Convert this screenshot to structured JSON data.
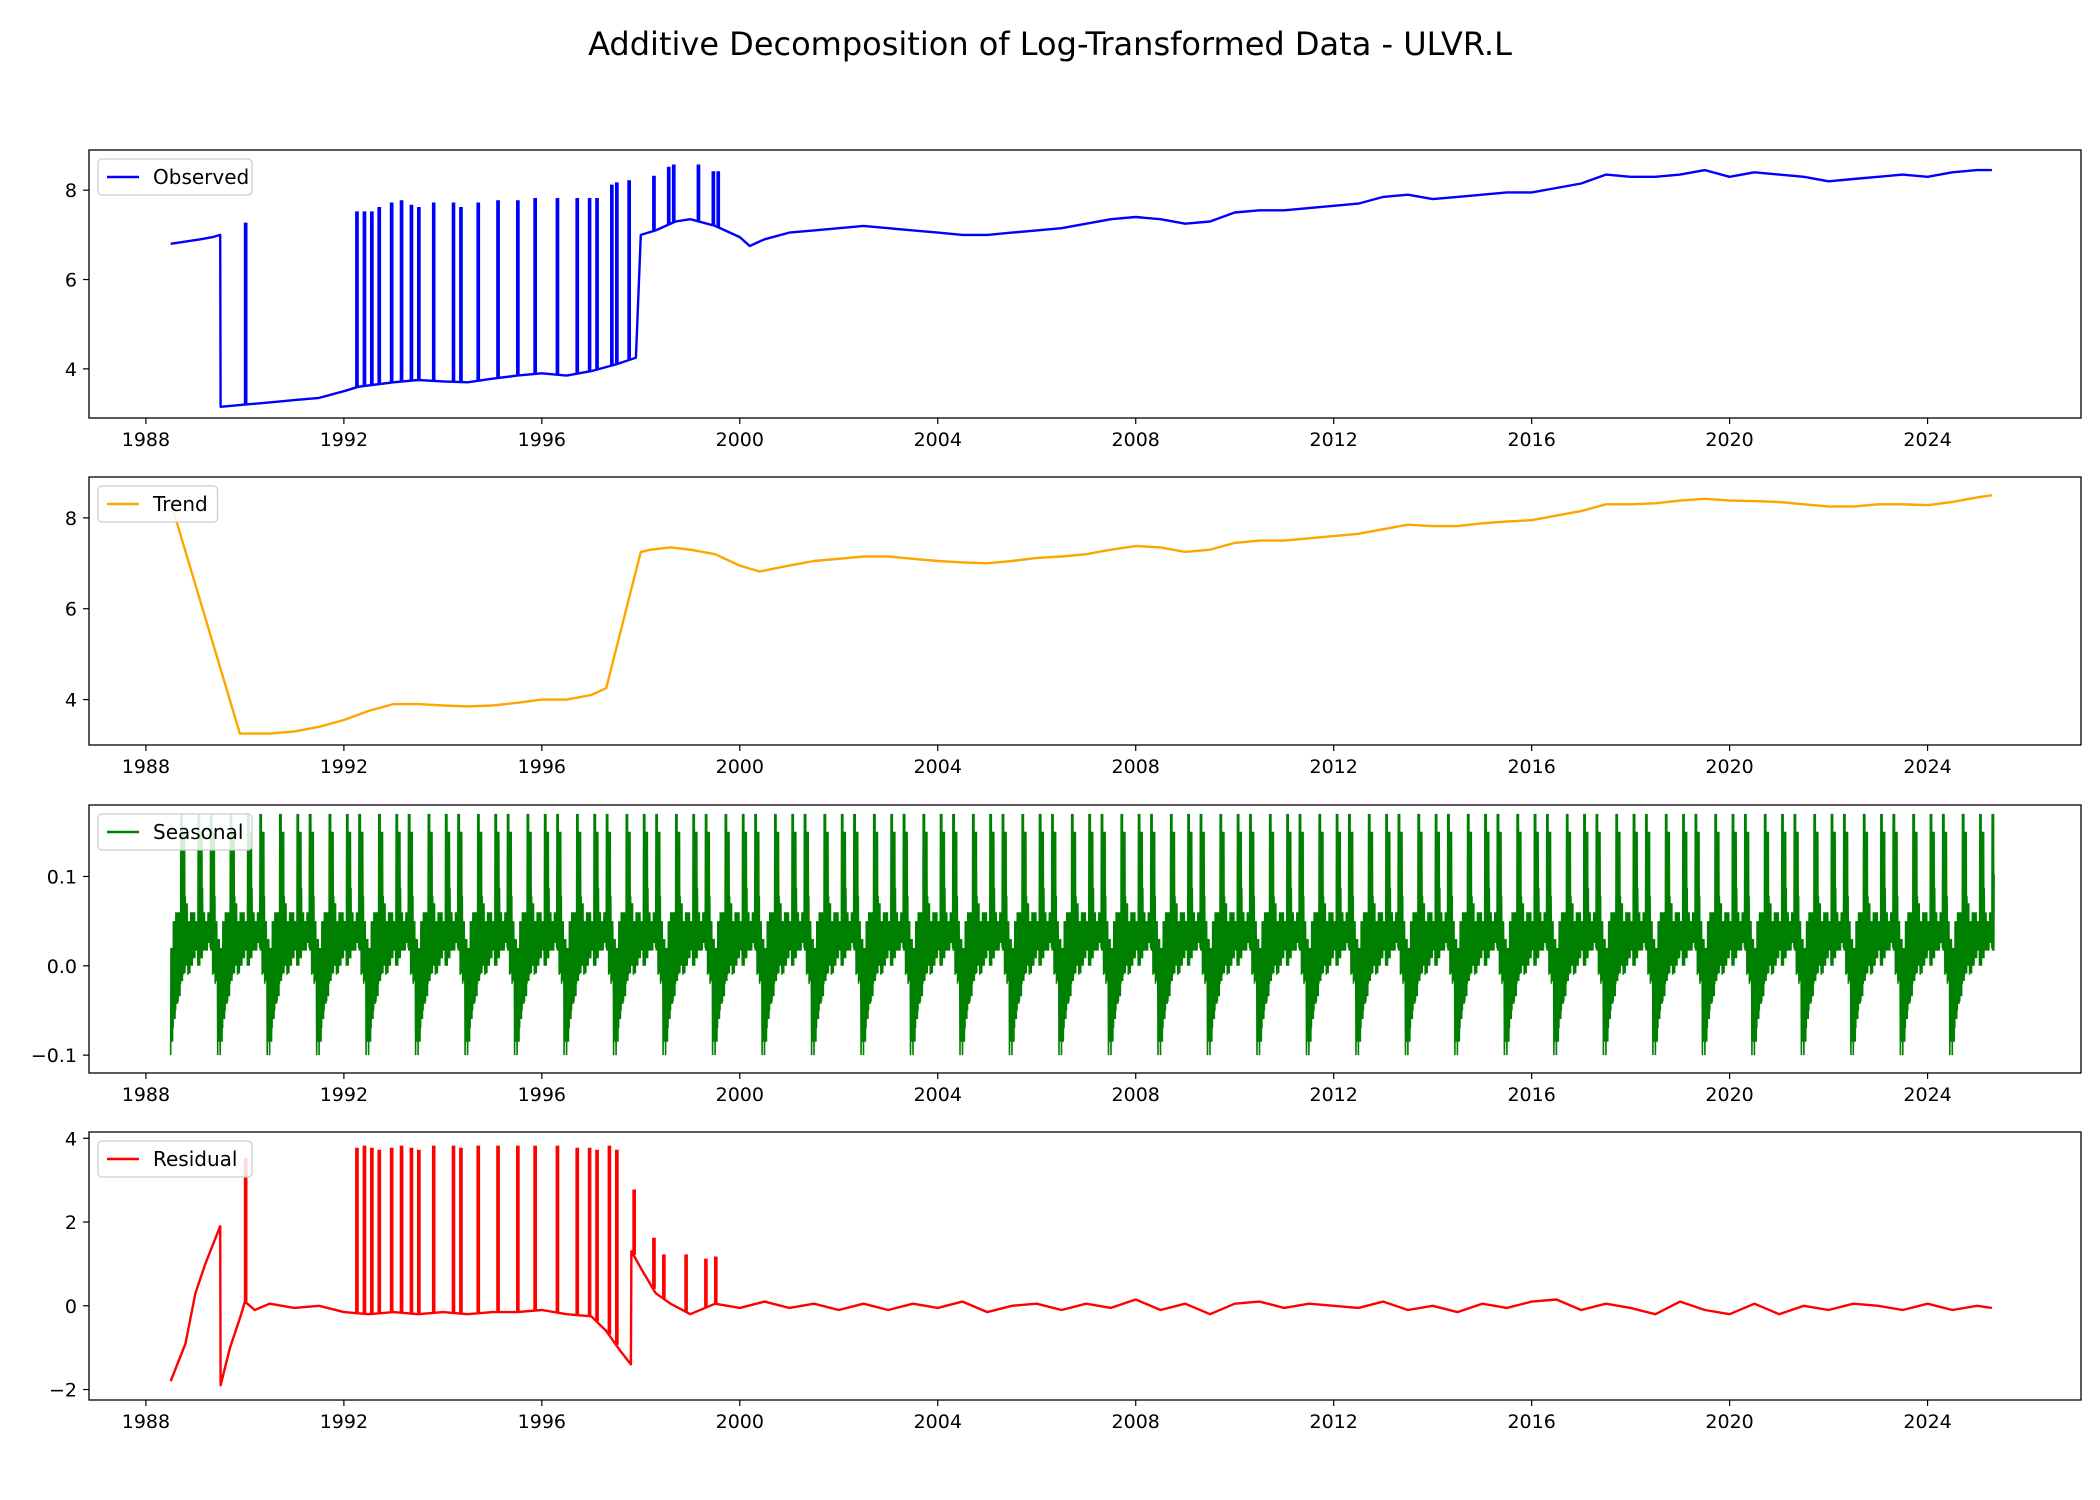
{
  "title": "Additive Decomposition of Log-Transformed Data - ULVR.L",
  "chart_data": [
    {
      "type": "line",
      "title": "",
      "legend": "top-left",
      "series": [
        {
          "name": "Observed",
          "color": "#0000ff"
        }
      ],
      "xlim": [
        1986.85,
        2027.1
      ],
      "ylim": [
        2.9,
        8.9
      ],
      "xticks": [
        1988,
        1992,
        1996,
        2000,
        2004,
        2008,
        2012,
        2016,
        2020,
        2024
      ],
      "yticks": [
        4,
        6,
        8
      ],
      "xticklabels": [
        "1988",
        "1992",
        "1996",
        "2000",
        "2004",
        "2008",
        "2012",
        "2016",
        "2020",
        "2024"
      ],
      "yticklabels": [
        "4",
        "6",
        "8"
      ],
      "x": [
        1988.5,
        1988.8,
        1989.1,
        1989.35,
        1989.5,
        1989.51,
        1990.0,
        1990.5,
        1991.0,
        1991.5,
        1992.0,
        1992.3,
        1993.0,
        1993.5,
        1994.0,
        1994.5,
        1995.0,
        1995.5,
        1996.0,
        1996.5,
        1997.0,
        1997.5,
        1997.9,
        1998.0,
        1998.3,
        1998.7,
        1999.0,
        1999.5,
        2000.0,
        2000.2,
        2000.5,
        2001.0,
        2001.5,
        2002.0,
        2002.5,
        2003.0,
        2003.5,
        2004.0,
        2004.5,
        2005.0,
        2005.5,
        2006.0,
        2006.5,
        2007.0,
        2007.5,
        2008.0,
        2008.5,
        2009.0,
        2009.5,
        2010.0,
        2010.5,
        2011.0,
        2011.5,
        2012.0,
        2012.5,
        2013.0,
        2013.5,
        2014.0,
        2014.5,
        2015.0,
        2015.5,
        2016.0,
        2016.5,
        2017.0,
        2017.5,
        2018.0,
        2018.5,
        2019.0,
        2019.5,
        2020.0,
        2020.5,
        2021.0,
        2021.5,
        2022.0,
        2022.5,
        2023.0,
        2023.5,
        2024.0,
        2024.5,
        2025.0,
        2025.3
      ],
      "y": [
        6.8,
        6.85,
        6.9,
        6.95,
        7.0,
        3.15,
        3.2,
        3.25,
        3.3,
        3.35,
        3.5,
        3.6,
        3.7,
        3.75,
        3.72,
        3.7,
        3.78,
        3.85,
        3.9,
        3.85,
        3.95,
        4.1,
        4.25,
        7.0,
        7.1,
        7.3,
        7.35,
        7.2,
        6.95,
        6.75,
        6.9,
        7.05,
        7.1,
        7.15,
        7.2,
        7.15,
        7.1,
        7.05,
        7.0,
        7.0,
        7.05,
        7.1,
        7.15,
        7.25,
        7.35,
        7.4,
        7.35,
        7.25,
        7.3,
        7.5,
        7.55,
        7.55,
        7.6,
        7.65,
        7.7,
        7.85,
        7.9,
        7.8,
        7.85,
        7.9,
        7.95,
        7.95,
        8.05,
        8.15,
        8.35,
        8.3,
        8.3,
        8.35,
        8.45,
        8.3,
        8.4,
        8.35,
        8.3,
        8.2,
        8.25,
        8.3,
        8.35,
        8.3,
        8.4,
        8.45,
        8.45
      ],
      "spikes": [
        [
          1990.0,
          7.25
        ],
        [
          1992.25,
          7.5
        ],
        [
          1992.4,
          7.5
        ],
        [
          1992.55,
          7.5
        ],
        [
          1992.7,
          7.6
        ],
        [
          1992.95,
          7.7
        ],
        [
          1993.15,
          7.75
        ],
        [
          1993.35,
          7.65
        ],
        [
          1993.5,
          7.6
        ],
        [
          1993.8,
          7.7
        ],
        [
          1994.2,
          7.7
        ],
        [
          1994.35,
          7.6
        ],
        [
          1994.7,
          7.7
        ],
        [
          1995.1,
          7.75
        ],
        [
          1995.5,
          7.75
        ],
        [
          1995.85,
          7.8
        ],
        [
          1996.3,
          7.8
        ],
        [
          1996.7,
          7.8
        ],
        [
          1996.95,
          7.8
        ],
        [
          1997.1,
          7.8
        ],
        [
          1997.4,
          8.1
        ],
        [
          1997.5,
          8.15
        ],
        [
          1997.75,
          8.2
        ],
        [
          1998.25,
          8.3
        ],
        [
          1998.55,
          8.5
        ],
        [
          1998.65,
          8.55
        ],
        [
          1999.15,
          8.55
        ],
        [
          1999.45,
          8.4
        ],
        [
          1999.55,
          8.4
        ]
      ]
    },
    {
      "type": "line",
      "title": "",
      "legend": "top-left",
      "series": [
        {
          "name": "Trend",
          "color": "#ffa500"
        }
      ],
      "xlim": [
        1986.85,
        2027.1
      ],
      "ylim": [
        3.0,
        8.9
      ],
      "xticks": [
        1988,
        1992,
        1996,
        2000,
        2004,
        2008,
        2012,
        2016,
        2020,
        2024
      ],
      "yticks": [
        4,
        6,
        8
      ],
      "xticklabels": [
        "1988",
        "1992",
        "1996",
        "2000",
        "2004",
        "2008",
        "2012",
        "2016",
        "2020",
        "2024"
      ],
      "yticklabels": [
        "4",
        "6",
        "8"
      ],
      "x": [
        1988.5,
        1989.9,
        1990.5,
        1991.0,
        1991.5,
        1992.0,
        1992.5,
        1993.0,
        1993.5,
        1994.0,
        1994.5,
        1995.0,
        1995.5,
        1996.0,
        1996.5,
        1997.0,
        1997.3,
        1998.0,
        1998.2,
        1998.6,
        1999.0,
        1999.5,
        2000.0,
        2000.4,
        2001.0,
        2001.5,
        2002.0,
        2002.5,
        2003.0,
        2003.5,
        2004.0,
        2004.5,
        2005.0,
        2005.5,
        2006.0,
        2006.5,
        2007.0,
        2007.5,
        2008.0,
        2008.5,
        2009.0,
        2009.5,
        2010.0,
        2010.5,
        2011.0,
        2011.5,
        2012.0,
        2012.5,
        2013.0,
        2013.5,
        2014.0,
        2014.5,
        2015.0,
        2015.5,
        2016.0,
        2016.5,
        2017.0,
        2017.5,
        2018.0,
        2018.5,
        2019.0,
        2019.5,
        2020.0,
        2020.5,
        2021.0,
        2021.5,
        2022.0,
        2022.5,
        2023.0,
        2023.5,
        2024.0,
        2024.5,
        2025.0,
        2025.3
      ],
      "y": [
        8.35,
        3.25,
        3.25,
        3.3,
        3.4,
        3.55,
        3.75,
        3.9,
        3.9,
        3.87,
        3.85,
        3.87,
        3.93,
        4.0,
        4.0,
        4.1,
        4.25,
        7.25,
        7.3,
        7.35,
        7.3,
        7.2,
        6.95,
        6.82,
        6.95,
        7.05,
        7.1,
        7.15,
        7.15,
        7.1,
        7.05,
        7.02,
        7.0,
        7.05,
        7.12,
        7.15,
        7.2,
        7.3,
        7.38,
        7.35,
        7.25,
        7.3,
        7.45,
        7.5,
        7.5,
        7.55,
        7.6,
        7.65,
        7.75,
        7.85,
        7.82,
        7.82,
        7.88,
        7.92,
        7.95,
        8.05,
        8.15,
        8.3,
        8.3,
        8.32,
        8.38,
        8.42,
        8.38,
        8.37,
        8.35,
        8.3,
        8.25,
        8.25,
        8.3,
        8.3,
        8.28,
        8.35,
        8.45,
        8.5
      ]
    },
    {
      "type": "line",
      "title": "",
      "legend": "top-left",
      "series": [
        {
          "name": "Seasonal",
          "color": "#008000"
        }
      ],
      "xlim": [
        1986.85,
        2027.1
      ],
      "ylim": [
        -0.12,
        0.18
      ],
      "xticks": [
        1988,
        1992,
        1996,
        2000,
        2004,
        2008,
        2012,
        2016,
        2020,
        2024
      ],
      "yticks": [
        -0.1,
        0.0,
        0.1
      ],
      "xticklabels": [
        "1988",
        "1992",
        "1996",
        "2000",
        "2004",
        "2008",
        "2012",
        "2016",
        "2020",
        "2024"
      ],
      "yticklabels": [
        "−0.1",
        "0.0",
        "0.1"
      ],
      "x_start": 1988.5,
      "x_end": 2025.3,
      "period_years": 1.0,
      "cycle_phase": [
        0.0,
        0.05,
        0.1,
        0.15,
        0.2,
        0.25,
        0.3,
        0.35,
        0.4,
        0.45,
        0.5,
        0.55,
        0.6,
        0.65,
        0.7,
        0.75,
        0.8,
        0.85,
        0.9,
        0.95
      ],
      "cycle_min": [
        -0.1,
        -0.07,
        -0.05,
        -0.04,
        -0.02,
        -0.01,
        0.0,
        -0.01,
        0.0,
        0.01,
        0.02,
        0.0,
        0.01,
        0.02,
        0.02,
        0.03,
        0.02,
        -0.01,
        -0.02,
        -0.1
      ],
      "cycle_max": [
        0.02,
        0.05,
        0.06,
        0.06,
        0.17,
        0.15,
        0.07,
        0.05,
        0.06,
        0.06,
        0.05,
        0.17,
        0.15,
        0.06,
        0.05,
        0.06,
        0.17,
        0.15,
        0.05,
        0.03
      ]
    },
    {
      "type": "line",
      "title": "",
      "legend": "top-left",
      "series": [
        {
          "name": "Residual",
          "color": "#ff0000"
        }
      ],
      "xlim": [
        1986.85,
        2027.1
      ],
      "ylim": [
        -2.25,
        4.15
      ],
      "xticks": [
        1988,
        1992,
        1996,
        2000,
        2004,
        2008,
        2012,
        2016,
        2020,
        2024
      ],
      "yticks": [
        -2,
        0,
        2,
        4
      ],
      "xticklabels": [
        "1988",
        "1992",
        "1996",
        "2000",
        "2004",
        "2008",
        "2012",
        "2016",
        "2020",
        "2024"
      ],
      "yticklabels": [
        "−2",
        "0",
        "2",
        "4"
      ],
      "x": [
        1988.5,
        1988.8,
        1989.0,
        1989.2,
        1989.5,
        1989.51,
        1989.7,
        1989.9,
        1990.0,
        1990.2,
        1990.5,
        1991.0,
        1991.5,
        1992.0,
        1992.5,
        1993.0,
        1993.5,
        1994.0,
        1994.5,
        1995.0,
        1995.5,
        1996.0,
        1996.5,
        1997.0,
        1997.3,
        1997.6,
        1997.8,
        1997.81,
        1998.0,
        1998.3,
        1998.6,
        1999.0,
        1999.5,
        2000.0,
        2000.5,
        2001.0,
        2001.5,
        2002.0,
        2002.5,
        2003.0,
        2003.5,
        2004.0,
        2004.5,
        2005.0,
        2005.5,
        2006.0,
        2006.5,
        2007.0,
        2007.5,
        2008.0,
        2008.5,
        2009.0,
        2009.5,
        2010.0,
        2010.5,
        2011.0,
        2011.5,
        2012.0,
        2012.5,
        2013.0,
        2013.5,
        2014.0,
        2014.5,
        2015.0,
        2015.5,
        2016.0,
        2016.5,
        2017.0,
        2017.5,
        2018.0,
        2018.5,
        2019.0,
        2019.5,
        2020.0,
        2020.5,
        2021.0,
        2021.5,
        2022.0,
        2022.5,
        2023.0,
        2023.5,
        2024.0,
        2024.5,
        2025.0,
        2025.3
      ],
      "y": [
        -1.8,
        -0.9,
        0.3,
        1.0,
        1.9,
        -1.9,
        -1.0,
        -0.3,
        0.1,
        -0.1,
        0.05,
        -0.05,
        0.0,
        -0.15,
        -0.2,
        -0.15,
        -0.2,
        -0.15,
        -0.2,
        -0.15,
        -0.15,
        -0.1,
        -0.2,
        -0.25,
        -0.6,
        -1.1,
        -1.4,
        1.3,
        0.9,
        0.3,
        0.05,
        -0.2,
        0.05,
        -0.05,
        0.1,
        -0.05,
        0.05,
        -0.1,
        0.05,
        -0.1,
        0.05,
        -0.05,
        0.1,
        -0.15,
        0.0,
        0.05,
        -0.1,
        0.05,
        -0.05,
        0.15,
        -0.1,
        0.05,
        -0.2,
        0.05,
        0.1,
        -0.05,
        0.05,
        0.0,
        -0.05,
        0.1,
        -0.1,
        0.0,
        -0.15,
        0.05,
        -0.05,
        0.1,
        0.15,
        -0.1,
        0.05,
        -0.05,
        -0.2,
        0.1,
        -0.1,
        -0.2,
        0.05,
        -0.2,
        0.0,
        -0.1,
        0.05,
        0.0,
        -0.1,
        0.05,
        -0.1,
        0.0,
        -0.05
      ],
      "spikes": [
        [
          1990.0,
          3.5
        ],
        [
          1992.25,
          3.75
        ],
        [
          1992.4,
          3.8
        ],
        [
          1992.55,
          3.75
        ],
        [
          1992.7,
          3.7
        ],
        [
          1992.95,
          3.75
        ],
        [
          1993.15,
          3.8
        ],
        [
          1993.35,
          3.75
        ],
        [
          1993.5,
          3.7
        ],
        [
          1993.8,
          3.8
        ],
        [
          1994.2,
          3.8
        ],
        [
          1994.35,
          3.75
        ],
        [
          1994.7,
          3.8
        ],
        [
          1995.1,
          3.8
        ],
        [
          1995.5,
          3.8
        ],
        [
          1995.85,
          3.8
        ],
        [
          1996.3,
          3.8
        ],
        [
          1996.7,
          3.75
        ],
        [
          1996.95,
          3.75
        ],
        [
          1997.1,
          3.7
        ],
        [
          1997.35,
          3.8
        ],
        [
          1997.5,
          3.7
        ],
        [
          1997.85,
          2.75
        ],
        [
          1998.25,
          1.6
        ],
        [
          1998.45,
          1.2
        ],
        [
          1998.9,
          1.2
        ],
        [
          1999.3,
          1.1
        ],
        [
          1999.5,
          1.15
        ]
      ]
    }
  ]
}
